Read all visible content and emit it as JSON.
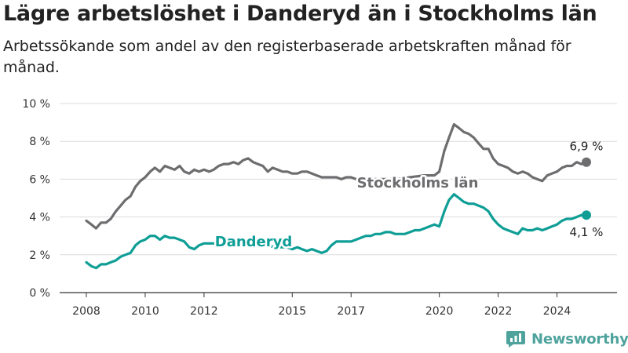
{
  "title": "Lägre arbetslöshet i Danderyd än i Stockholms län",
  "subtitle": "Arbetssökande som andel av den registerbaserade arbetskraften månad för månad.",
  "brand": {
    "name": "Newsworthy",
    "color": "#4ea39d",
    "icon": "newsworthy-logo-icon"
  },
  "chart_data": {
    "type": "line",
    "xlabel": "",
    "ylabel": "",
    "x_ticks": [
      "2008",
      "2010",
      "2012",
      "2015",
      "2017",
      "2020",
      "2022",
      "2024"
    ],
    "x_tick_values": [
      2008,
      2010,
      2012,
      2015,
      2017,
      2020,
      2022,
      2024
    ],
    "y_ticks": [
      "0 %",
      "2 %",
      "4 %",
      "6 %",
      "8 %",
      "10 %"
    ],
    "y_tick_values": [
      0,
      2,
      4,
      6,
      8,
      10
    ],
    "xlim": [
      2008,
      2025.2
    ],
    "ylim": [
      0,
      10
    ],
    "grid": "horizontal",
    "legend": "inline-labels",
    "series": [
      {
        "name": "Stockholms län",
        "color": "#6d6d70",
        "last_label": "6,9 %",
        "points": [
          [
            2008.0,
            3.8
          ],
          [
            2008.17,
            3.6
          ],
          [
            2008.33,
            3.4
          ],
          [
            2008.5,
            3.7
          ],
          [
            2008.67,
            3.7
          ],
          [
            2008.83,
            3.9
          ],
          [
            2009.0,
            4.3
          ],
          [
            2009.17,
            4.6
          ],
          [
            2009.33,
            4.9
          ],
          [
            2009.5,
            5.1
          ],
          [
            2009.67,
            5.6
          ],
          [
            2009.83,
            5.9
          ],
          [
            2010.0,
            6.1
          ],
          [
            2010.17,
            6.4
          ],
          [
            2010.33,
            6.6
          ],
          [
            2010.5,
            6.4
          ],
          [
            2010.67,
            6.7
          ],
          [
            2010.83,
            6.6
          ],
          [
            2011.0,
            6.5
          ],
          [
            2011.17,
            6.7
          ],
          [
            2011.33,
            6.4
          ],
          [
            2011.5,
            6.3
          ],
          [
            2011.67,
            6.5
          ],
          [
            2011.83,
            6.4
          ],
          [
            2012.0,
            6.5
          ],
          [
            2012.17,
            6.4
          ],
          [
            2012.33,
            6.5
          ],
          [
            2012.5,
            6.7
          ],
          [
            2012.67,
            6.8
          ],
          [
            2012.83,
            6.8
          ],
          [
            2013.0,
            6.9
          ],
          [
            2013.17,
            6.8
          ],
          [
            2013.33,
            7.0
          ],
          [
            2013.5,
            7.1
          ],
          [
            2013.67,
            6.9
          ],
          [
            2013.83,
            6.8
          ],
          [
            2014.0,
            6.7
          ],
          [
            2014.17,
            6.4
          ],
          [
            2014.33,
            6.6
          ],
          [
            2014.5,
            6.5
          ],
          [
            2014.67,
            6.4
          ],
          [
            2014.83,
            6.4
          ],
          [
            2015.0,
            6.3
          ],
          [
            2015.17,
            6.3
          ],
          [
            2015.33,
            6.4
          ],
          [
            2015.5,
            6.4
          ],
          [
            2015.67,
            6.3
          ],
          [
            2015.83,
            6.2
          ],
          [
            2016.0,
            6.1
          ],
          [
            2016.17,
            6.1
          ],
          [
            2016.33,
            6.1
          ],
          [
            2016.5,
            6.1
          ],
          [
            2016.67,
            6.0
          ],
          [
            2016.83,
            6.1
          ],
          [
            2017.0,
            6.1
          ],
          [
            2017.17,
            6.0
          ],
          [
            2017.5,
            6.0
          ],
          [
            2018.0,
            6.0
          ],
          [
            2018.5,
            6.0
          ],
          [
            2019.0,
            6.1
          ],
          [
            2019.5,
            6.2
          ],
          [
            2019.83,
            6.2
          ],
          [
            2020.0,
            6.4
          ],
          [
            2020.17,
            7.5
          ],
          [
            2020.33,
            8.2
          ],
          [
            2020.5,
            8.9
          ],
          [
            2020.67,
            8.7
          ],
          [
            2020.83,
            8.5
          ],
          [
            2021.0,
            8.4
          ],
          [
            2021.17,
            8.2
          ],
          [
            2021.33,
            7.9
          ],
          [
            2021.5,
            7.6
          ],
          [
            2021.67,
            7.6
          ],
          [
            2021.83,
            7.1
          ],
          [
            2022.0,
            6.8
          ],
          [
            2022.17,
            6.7
          ],
          [
            2022.33,
            6.6
          ],
          [
            2022.5,
            6.4
          ],
          [
            2022.67,
            6.3
          ],
          [
            2022.83,
            6.4
          ],
          [
            2023.0,
            6.3
          ],
          [
            2023.17,
            6.1
          ],
          [
            2023.33,
            6.0
          ],
          [
            2023.5,
            5.9
          ],
          [
            2023.67,
            6.2
          ],
          [
            2023.83,
            6.3
          ],
          [
            2024.0,
            6.4
          ],
          [
            2024.17,
            6.6
          ],
          [
            2024.33,
            6.7
          ],
          [
            2024.5,
            6.7
          ],
          [
            2024.67,
            6.9
          ],
          [
            2024.83,
            6.8
          ],
          [
            2025.0,
            6.9
          ]
        ]
      },
      {
        "name": "Danderyd",
        "color": "#0e9e96",
        "last_label": "4,1 %",
        "points": [
          [
            2008.0,
            1.6
          ],
          [
            2008.17,
            1.4
          ],
          [
            2008.33,
            1.3
          ],
          [
            2008.5,
            1.5
          ],
          [
            2008.67,
            1.5
          ],
          [
            2008.83,
            1.6
          ],
          [
            2009.0,
            1.7
          ],
          [
            2009.17,
            1.9
          ],
          [
            2009.33,
            2.0
          ],
          [
            2009.5,
            2.1
          ],
          [
            2009.67,
            2.5
          ],
          [
            2009.83,
            2.7
          ],
          [
            2010.0,
            2.8
          ],
          [
            2010.17,
            3.0
          ],
          [
            2010.33,
            3.0
          ],
          [
            2010.5,
            2.8
          ],
          [
            2010.67,
            3.0
          ],
          [
            2010.83,
            2.9
          ],
          [
            2011.0,
            2.9
          ],
          [
            2011.17,
            2.8
          ],
          [
            2011.33,
            2.7
          ],
          [
            2011.5,
            2.4
          ],
          [
            2011.67,
            2.3
          ],
          [
            2011.83,
            2.5
          ],
          [
            2012.0,
            2.6
          ],
          [
            2012.17,
            2.6
          ],
          [
            2012.33,
            2.6
          ],
          [
            2012.5,
            2.6
          ],
          [
            2012.67,
            2.6
          ],
          [
            2012.83,
            2.6
          ],
          [
            2013.0,
            2.6
          ],
          [
            2013.5,
            2.6
          ],
          [
            2014.0,
            2.5
          ],
          [
            2014.5,
            2.4
          ],
          [
            2014.83,
            2.4
          ],
          [
            2015.0,
            2.3
          ],
          [
            2015.17,
            2.4
          ],
          [
            2015.33,
            2.3
          ],
          [
            2015.5,
            2.2
          ],
          [
            2015.67,
            2.3
          ],
          [
            2015.83,
            2.2
          ],
          [
            2016.0,
            2.1
          ],
          [
            2016.17,
            2.2
          ],
          [
            2016.33,
            2.5
          ],
          [
            2016.5,
            2.7
          ],
          [
            2016.67,
            2.7
          ],
          [
            2016.83,
            2.7
          ],
          [
            2017.0,
            2.7
          ],
          [
            2017.17,
            2.8
          ],
          [
            2017.33,
            2.9
          ],
          [
            2017.5,
            3.0
          ],
          [
            2017.67,
            3.0
          ],
          [
            2017.83,
            3.1
          ],
          [
            2018.0,
            3.1
          ],
          [
            2018.17,
            3.2
          ],
          [
            2018.33,
            3.2
          ],
          [
            2018.5,
            3.1
          ],
          [
            2018.67,
            3.1
          ],
          [
            2018.83,
            3.1
          ],
          [
            2019.0,
            3.2
          ],
          [
            2019.17,
            3.3
          ],
          [
            2019.33,
            3.3
          ],
          [
            2019.5,
            3.4
          ],
          [
            2019.67,
            3.5
          ],
          [
            2019.83,
            3.6
          ],
          [
            2020.0,
            3.5
          ],
          [
            2020.17,
            4.3
          ],
          [
            2020.33,
            4.9
          ],
          [
            2020.5,
            5.2
          ],
          [
            2020.67,
            5.0
          ],
          [
            2020.83,
            4.8
          ],
          [
            2021.0,
            4.7
          ],
          [
            2021.17,
            4.7
          ],
          [
            2021.33,
            4.6
          ],
          [
            2021.5,
            4.5
          ],
          [
            2021.67,
            4.3
          ],
          [
            2021.83,
            3.9
          ],
          [
            2022.0,
            3.6
          ],
          [
            2022.17,
            3.4
          ],
          [
            2022.33,
            3.3
          ],
          [
            2022.5,
            3.2
          ],
          [
            2022.67,
            3.1
          ],
          [
            2022.83,
            3.4
          ],
          [
            2023.0,
            3.3
          ],
          [
            2023.17,
            3.3
          ],
          [
            2023.33,
            3.4
          ],
          [
            2023.5,
            3.3
          ],
          [
            2023.67,
            3.4
          ],
          [
            2023.83,
            3.5
          ],
          [
            2024.0,
            3.6
          ],
          [
            2024.17,
            3.8
          ],
          [
            2024.33,
            3.9
          ],
          [
            2024.5,
            3.9
          ],
          [
            2024.67,
            4.0
          ],
          [
            2024.83,
            4.1
          ],
          [
            2025.0,
            4.1
          ]
        ]
      }
    ]
  }
}
